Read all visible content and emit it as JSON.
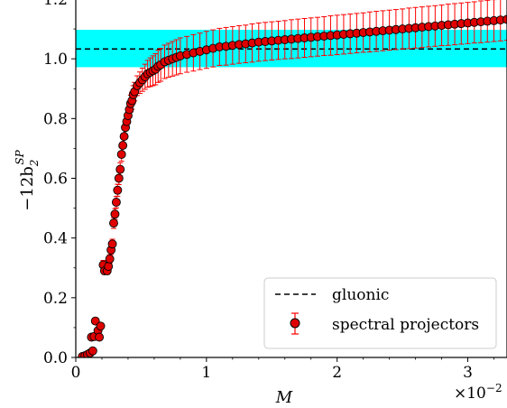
{
  "chart_data": {
    "type": "scatter",
    "xlabel": "M",
    "ylabel": "−12b",
    "ylabel_sub": "2",
    "ylabel_sup": "SP",
    "x_scale_label": "×10",
    "x_scale_exp": "−2",
    "xlim": [
      0,
      3.3
    ],
    "ylim": [
      0,
      1.2
    ],
    "x_ticks": [
      {
        "value": 0,
        "label": "0"
      },
      {
        "value": 1,
        "label": "1"
      },
      {
        "value": 2,
        "label": "2"
      },
      {
        "value": 3,
        "label": "3"
      }
    ],
    "y_ticks": [
      {
        "value": 0.0,
        "label": "0.0"
      },
      {
        "value": 0.2,
        "label": "0.2"
      },
      {
        "value": 0.4,
        "label": "0.4"
      },
      {
        "value": 0.6,
        "label": "0.6"
      },
      {
        "value": 0.8,
        "label": "0.8"
      },
      {
        "value": 1.0,
        "label": "1.0"
      },
      {
        "value": 1.2,
        "label": "1.2"
      }
    ],
    "gluonic": {
      "name": "gluonic",
      "value": 1.033,
      "band": [
        0.972,
        1.097
      ],
      "band_color": "#00ffff",
      "line_color": "#000000"
    },
    "series": [
      {
        "name": "spectral projectors",
        "marker_fill": "#e00000",
        "marker_edge": "#000000",
        "errorbar_color": "#ff0000",
        "points": [
          [
            0.05,
            0.003,
            0.003
          ],
          [
            0.07,
            0.006,
            0.004
          ],
          [
            0.09,
            0.01,
            0.005
          ],
          [
            0.11,
            0.015,
            0.006
          ],
          [
            0.13,
            0.022,
            0.007
          ],
          [
            0.12,
            0.068,
            0.008
          ],
          [
            0.14,
            0.07,
            0.008
          ],
          [
            0.15,
            0.122,
            0.009
          ],
          [
            0.17,
            0.09,
            0.009
          ],
          [
            0.19,
            0.105,
            0.01
          ],
          [
            0.18,
            0.068,
            0.009
          ],
          [
            0.21,
            0.31,
            0.015
          ],
          [
            0.22,
            0.29,
            0.012
          ],
          [
            0.24,
            0.29,
            0.012
          ],
          [
            0.25,
            0.305,
            0.013
          ],
          [
            0.26,
            0.33,
            0.014
          ],
          [
            0.27,
            0.36,
            0.015
          ],
          [
            0.28,
            0.38,
            0.016
          ],
          [
            0.29,
            0.45,
            0.018
          ],
          [
            0.3,
            0.48,
            0.018
          ],
          [
            0.31,
            0.52,
            0.019
          ],
          [
            0.32,
            0.56,
            0.02
          ],
          [
            0.33,
            0.6,
            0.021
          ],
          [
            0.34,
            0.63,
            0.022
          ],
          [
            0.35,
            0.68,
            0.023
          ],
          [
            0.36,
            0.71,
            0.024
          ],
          [
            0.37,
            0.74,
            0.024
          ],
          [
            0.38,
            0.77,
            0.025
          ],
          [
            0.39,
            0.79,
            0.025
          ],
          [
            0.4,
            0.81,
            0.026
          ],
          [
            0.41,
            0.83,
            0.027
          ],
          [
            0.42,
            0.85,
            0.028
          ],
          [
            0.43,
            0.86,
            0.029
          ],
          [
            0.44,
            0.88,
            0.03
          ],
          [
            0.45,
            0.89,
            0.031
          ],
          [
            0.47,
            0.91,
            0.033
          ],
          [
            0.49,
            0.92,
            0.036
          ],
          [
            0.51,
            0.93,
            0.039
          ],
          [
            0.53,
            0.94,
            0.042
          ],
          [
            0.55,
            0.95,
            0.045
          ],
          [
            0.57,
            0.955,
            0.048
          ],
          [
            0.59,
            0.96,
            0.05
          ],
          [
            0.61,
            0.965,
            0.052
          ],
          [
            0.63,
            0.975,
            0.054
          ],
          [
            0.65,
            0.98,
            0.055
          ],
          [
            0.68,
            0.99,
            0.056
          ],
          [
            0.71,
            0.995,
            0.057
          ],
          [
            0.74,
            1.0,
            0.058
          ],
          [
            0.77,
            1.005,
            0.059
          ],
          [
            0.8,
            1.01,
            0.06
          ],
          [
            0.85,
            1.015,
            0.06
          ],
          [
            0.9,
            1.02,
            0.061
          ],
          [
            0.95,
            1.025,
            0.061
          ],
          [
            1.0,
            1.03,
            0.062
          ],
          [
            1.05,
            1.035,
            0.062
          ],
          [
            1.1,
            1.04,
            0.062
          ],
          [
            1.15,
            1.042,
            0.063
          ],
          [
            1.2,
            1.045,
            0.063
          ],
          [
            1.25,
            1.048,
            0.063
          ],
          [
            1.3,
            1.05,
            0.063
          ],
          [
            1.35,
            1.053,
            0.064
          ],
          [
            1.4,
            1.056,
            0.064
          ],
          [
            1.45,
            1.058,
            0.064
          ],
          [
            1.5,
            1.06,
            0.064
          ],
          [
            1.55,
            1.062,
            0.064
          ],
          [
            1.6,
            1.064,
            0.064
          ],
          [
            1.65,
            1.066,
            0.065
          ],
          [
            1.7,
            1.068,
            0.065
          ],
          [
            1.75,
            1.07,
            0.065
          ],
          [
            1.8,
            1.072,
            0.065
          ],
          [
            1.85,
            1.074,
            0.065
          ],
          [
            1.9,
            1.076,
            0.065
          ],
          [
            1.95,
            1.078,
            0.066
          ],
          [
            2.0,
            1.08,
            0.066
          ],
          [
            2.05,
            1.082,
            0.066
          ],
          [
            2.1,
            1.084,
            0.066
          ],
          [
            2.15,
            1.086,
            0.066
          ],
          [
            2.2,
            1.088,
            0.066
          ],
          [
            2.25,
            1.09,
            0.067
          ],
          [
            2.3,
            1.092,
            0.067
          ],
          [
            2.35,
            1.094,
            0.067
          ],
          [
            2.4,
            1.096,
            0.067
          ],
          [
            2.45,
            1.098,
            0.067
          ],
          [
            2.5,
            1.1,
            0.067
          ],
          [
            2.55,
            1.102,
            0.068
          ],
          [
            2.6,
            1.104,
            0.068
          ],
          [
            2.65,
            1.106,
            0.068
          ],
          [
            2.7,
            1.108,
            0.068
          ],
          [
            2.75,
            1.11,
            0.068
          ],
          [
            2.8,
            1.112,
            0.068
          ],
          [
            2.85,
            1.114,
            0.069
          ],
          [
            2.9,
            1.116,
            0.069
          ],
          [
            2.95,
            1.118,
            0.069
          ],
          [
            3.0,
            1.12,
            0.069
          ],
          [
            3.05,
            1.122,
            0.069
          ],
          [
            3.1,
            1.124,
            0.07
          ],
          [
            3.15,
            1.126,
            0.07
          ],
          [
            3.2,
            1.128,
            0.07
          ],
          [
            3.25,
            1.13,
            0.07
          ],
          [
            3.3,
            1.132,
            0.07
          ]
        ]
      }
    ],
    "legend": {
      "position": "bottom-right",
      "entries": [
        "gluonic",
        "spectral projectors"
      ]
    },
    "grid": false
  }
}
